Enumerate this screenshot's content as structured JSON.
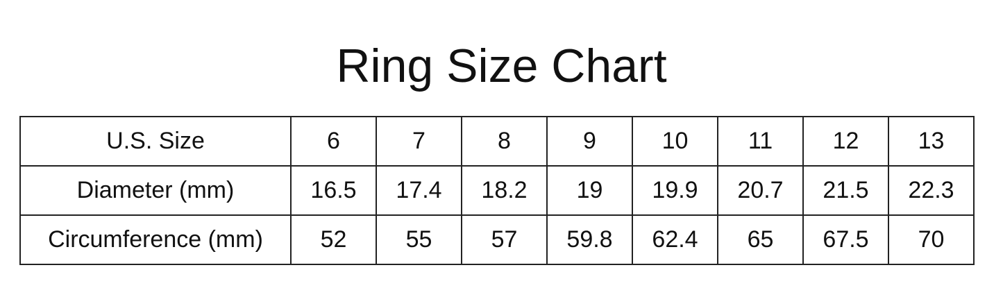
{
  "title": "Ring Size Chart",
  "table": {
    "rows": [
      {
        "label": "U.S. Size",
        "values": [
          "6",
          "7",
          "8",
          "9",
          "10",
          "11",
          "12",
          "13"
        ]
      },
      {
        "label": "Diameter (mm)",
        "values": [
          "16.5",
          "17.4",
          "18.2",
          "19",
          "19.9",
          "20.7",
          "21.5",
          "22.3"
        ]
      },
      {
        "label": "Circumference (mm)",
        "values": [
          "52",
          "55",
          "57",
          "59.8",
          "62.4",
          "65",
          "67.5",
          "70"
        ]
      }
    ]
  }
}
